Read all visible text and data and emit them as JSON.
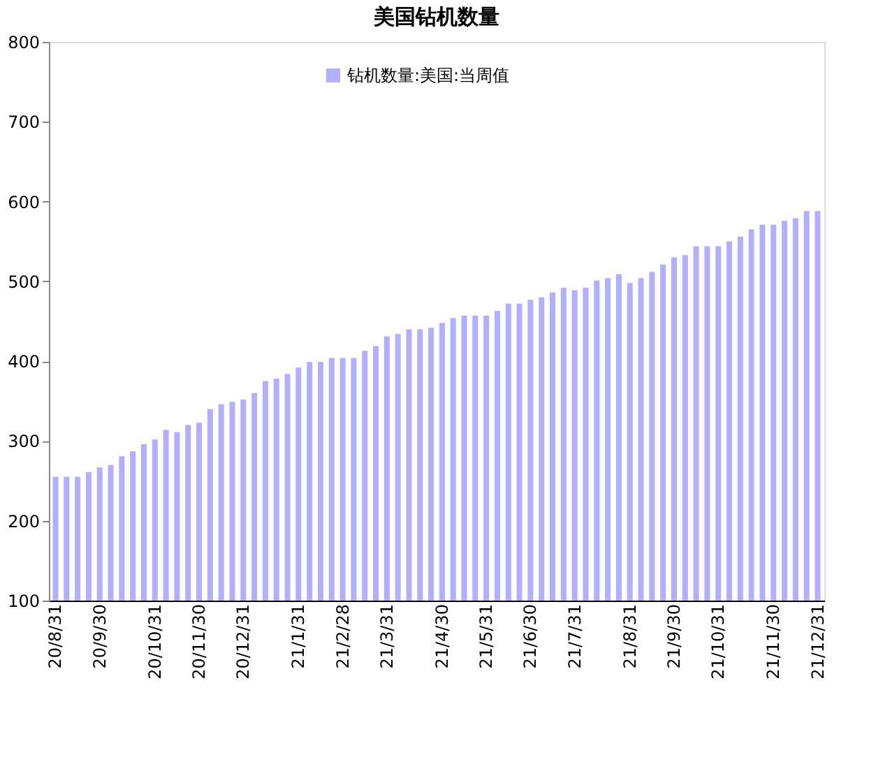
{
  "chart_data": {
    "type": "bar",
    "title": "美国钻机数量",
    "categories": [
      "20/8/31",
      null,
      null,
      null,
      "20/9/30",
      null,
      null,
      null,
      null,
      "20/10/31",
      null,
      null,
      null,
      "20/11/30",
      null,
      null,
      null,
      "20/12/31",
      null,
      null,
      null,
      null,
      "21/1/31",
      null,
      null,
      null,
      "21/2/28",
      null,
      null,
      null,
      "21/3/31",
      null,
      null,
      null,
      null,
      "21/4/30",
      null,
      null,
      null,
      "21/5/31",
      null,
      null,
      null,
      "21/6/30",
      null,
      null,
      null,
      "21/7/31",
      null,
      null,
      null,
      null,
      "21/8/31",
      null,
      null,
      null,
      "21/9/30",
      null,
      null,
      null,
      "21/10/31",
      null,
      null,
      null,
      null,
      "21/11/30",
      null,
      null,
      null,
      "21/12/31"
    ],
    "series": [
      {
        "name": "钻机数量:美国:当周值",
        "color": "#b0b0ff",
        "values": [
          255,
          255,
          255,
          261,
          267,
          270,
          281,
          287,
          296,
          302,
          314,
          311,
          320,
          323,
          340,
          346,
          349,
          352,
          360,
          375,
          378,
          384,
          392,
          399,
          399,
          404,
          404,
          404,
          413,
          419,
          431,
          434,
          440,
          440,
          442,
          448,
          454,
          457,
          457,
          457,
          463,
          472,
          472,
          477,
          480,
          486,
          492,
          489,
          492,
          501,
          504,
          509,
          498,
          504,
          512,
          521,
          530,
          533,
          544,
          544,
          544,
          550,
          556,
          565,
          571,
          571,
          576,
          579,
          588,
          588
        ]
      }
    ],
    "ylim": [
      100,
      800
    ],
    "yticks": [
      100,
      200,
      300,
      400,
      500,
      600,
      700,
      800
    ],
    "grid": false,
    "legend": "top"
  }
}
